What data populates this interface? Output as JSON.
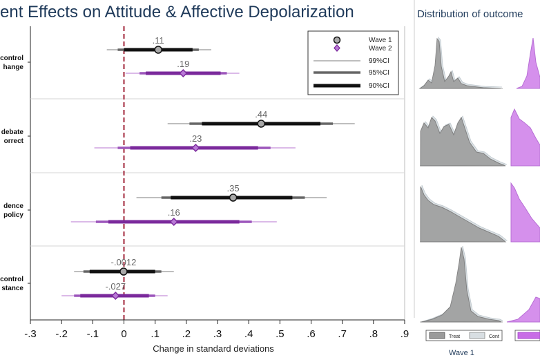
{
  "main_title": "ent Effects on Attitude & Affective Depolarization",
  "dist_title": "Distribution of outcome",
  "wave1_footer": "Wave 1",
  "density_legend": {
    "treat": "Treat",
    "cont": "Cont"
  },
  "colors": {
    "wave1": "#111111",
    "wave1_ci95": "#666666",
    "wave1_ci99": "#a9a9a9",
    "wave2": "#7b2a9c",
    "wave2_ci95": "#9c55bb",
    "wave2_ci99": "#cfa4e0",
    "zero_line": "#a0243a",
    "density_gray": "#9a9a9a",
    "density_light": "#d8dee2",
    "density_purple": "#c86ce6"
  },
  "chart_data": {
    "type": "coefficient-plot",
    "title": "ent Effects on Attitude & Affective Depolarization",
    "xlabel": "Change in standard deviations",
    "xlim": [
      -0.3,
      0.9
    ],
    "xticks": [
      "-.3",
      "-.2",
      "-.1",
      "0",
      ".1",
      ".2",
      ".3",
      ".4",
      ".5",
      ".6",
      ".7",
      ".8",
      ".9"
    ],
    "xtick_values": [
      -0.3,
      -0.2,
      -0.1,
      0,
      0.1,
      0.2,
      0.3,
      0.4,
      0.5,
      0.6,
      0.7,
      0.8,
      0.9
    ],
    "reference_line": 0,
    "legend": {
      "position": "top-right",
      "entries": [
        "Wave 1",
        "Wave 2",
        "99%CI",
        "95%CI",
        "90%CI"
      ]
    },
    "groups": [
      {
        "label_lines": [
          "control",
          "hange"
        ],
        "estimates": [
          {
            "series": "Wave 1",
            "label": ".11",
            "value": 0.11,
            "ci90": [
              0.0,
              0.22
            ],
            "ci95": [
              -0.02,
              0.24
            ],
            "ci99": [
              -0.055,
              0.28
            ]
          },
          {
            "series": "Wave 2",
            "label": ".19",
            "value": 0.19,
            "ci90": [
              0.07,
              0.31
            ],
            "ci95": [
              0.05,
              0.33
            ],
            "ci99": [
              0.005,
              0.37
            ]
          }
        ]
      },
      {
        "label_lines": [
          "debate",
          "orrect"
        ],
        "estimates": [
          {
            "series": "Wave 1",
            "label": ".44",
            "value": 0.44,
            "ci90": [
              0.25,
              0.63
            ],
            "ci95": [
              0.21,
              0.67
            ],
            "ci99": [
              0.14,
              0.74
            ]
          },
          {
            "series": "Wave 2",
            "label": ".23",
            "value": 0.23,
            "ci90": [
              0.02,
              0.43
            ],
            "ci95": [
              -0.02,
              0.47
            ],
            "ci99": [
              -0.095,
              0.55
            ]
          }
        ]
      },
      {
        "label_lines": [
          "dence",
          "policy"
        ],
        "estimates": [
          {
            "series": "Wave 1",
            "label": ".35",
            "value": 0.35,
            "ci90": [
              0.15,
              0.54
            ],
            "ci95": [
              0.12,
              0.58
            ],
            "ci99": [
              0.04,
              0.65
            ]
          },
          {
            "series": "Wave 2",
            "label": ".16",
            "value": 0.16,
            "ci90": [
              -0.05,
              0.37
            ],
            "ci95": [
              -0.09,
              0.41
            ],
            "ci99": [
              -0.17,
              0.49
            ]
          }
        ]
      },
      {
        "label_lines": [
          "control",
          "stance"
        ],
        "estimates": [
          {
            "series": "Wave 1",
            "label": "-.0012",
            "value": -0.0012,
            "ci90": [
              -0.11,
              0.1
            ],
            "ci95": [
              -0.13,
              0.12
            ],
            "ci99": [
              -0.16,
              0.16
            ]
          },
          {
            "series": "Wave 2",
            "label": "-.027",
            "value": -0.027,
            "ci90": [
              -0.14,
              0.08
            ],
            "ci95": [
              -0.16,
              0.1
            ],
            "ci99": [
              -0.2,
              0.14
            ]
          }
        ]
      }
    ]
  }
}
